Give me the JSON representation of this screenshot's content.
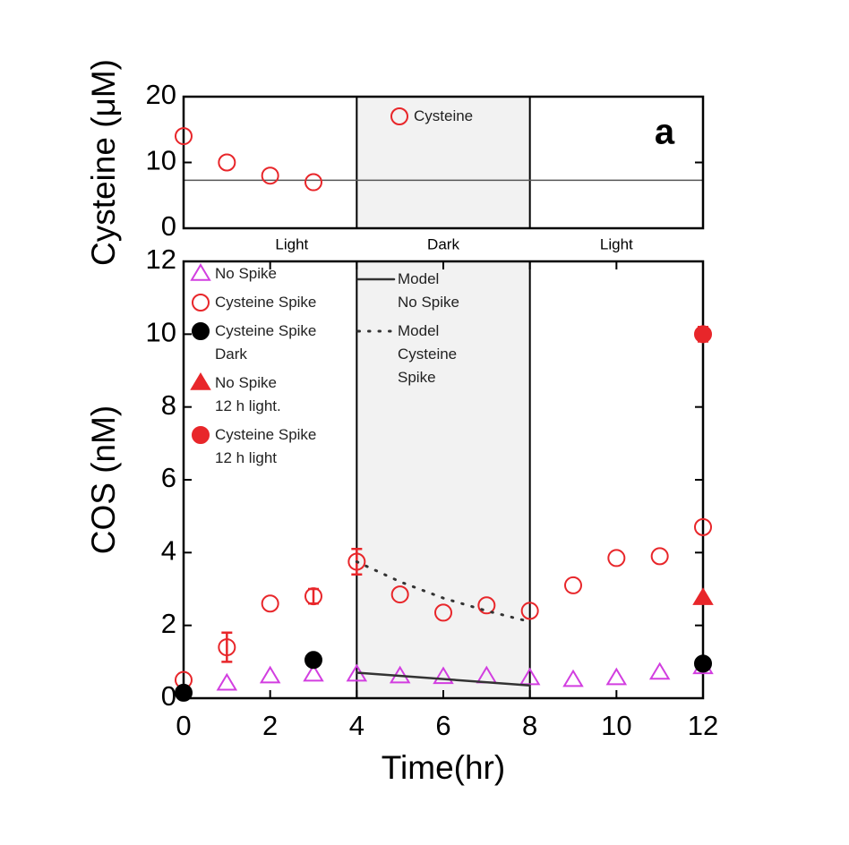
{
  "chart_data": [
    {
      "type": "scatter",
      "ylabel": "Cysteine (μM)",
      "panel_label": "a",
      "xlim": [
        0,
        12
      ],
      "ylim": [
        0,
        20
      ],
      "yticks": [
        0,
        10,
        20
      ],
      "shade": [
        4,
        8
      ],
      "hline": 7.3,
      "period_labels": [
        {
          "x": 2.5,
          "label": "Light"
        },
        {
          "x": 6,
          "label": "Dark"
        },
        {
          "x": 10,
          "label": "Light"
        }
      ],
      "series": [
        {
          "name": "Cysteine",
          "color": "#e8262a",
          "marker": "circle-open",
          "x": [
            0,
            1,
            2,
            3
          ],
          "values": [
            14,
            10,
            8,
            7
          ]
        }
      ]
    },
    {
      "type": "scatter",
      "xlabel": "Time(hr)",
      "ylabel": "COS (nM)",
      "xlim": [
        0,
        12
      ],
      "ylim": [
        0,
        12
      ],
      "xticks": [
        0,
        2,
        4,
        6,
        8,
        10,
        12
      ],
      "yticks": [
        0,
        2,
        4,
        6,
        8,
        10,
        12
      ],
      "shade": [
        4,
        8
      ],
      "series": [
        {
          "name": "No Spike",
          "color": "#d23ee0",
          "marker": "triangle-open",
          "x": [
            1,
            2,
            3,
            4,
            5,
            6,
            7,
            8,
            9,
            10,
            11,
            12
          ],
          "values": [
            0.4,
            0.6,
            0.65,
            0.65,
            0.6,
            0.58,
            0.6,
            0.55,
            0.5,
            0.55,
            0.7,
            0.85
          ]
        },
        {
          "name": "Cysteine Spike",
          "color": "#e8262a",
          "marker": "circle-open",
          "x": [
            0,
            1,
            2,
            3,
            4,
            5,
            6,
            7,
            8,
            9,
            10,
            11,
            12
          ],
          "values": [
            0.5,
            1.4,
            2.6,
            2.8,
            3.75,
            2.85,
            2.35,
            2.55,
            2.4,
            3.1,
            3.85,
            3.9,
            4.7
          ],
          "errors": [
            null,
            0.4,
            null,
            0.2,
            0.35,
            null,
            null,
            null,
            null,
            null,
            null,
            null,
            null
          ]
        },
        {
          "name": "Cysteine Spike\nDark",
          "color": "#000000",
          "marker": "circle",
          "x": [
            0,
            3,
            12
          ],
          "values": [
            0.15,
            1.05,
            0.95
          ]
        },
        {
          "name": "No Spike\n12 h light.",
          "color": "#e8262a",
          "marker": "triangle",
          "x": [
            12
          ],
          "values": [
            2.75
          ]
        },
        {
          "name": "Cysteine Spike\n12 h light",
          "color": "#e8262a",
          "marker": "circle",
          "x": [
            12
          ],
          "values": [
            10.0
          ],
          "errors": [
            0.2
          ]
        },
        {
          "name": "Model\nNo Spike",
          "color": "#333333",
          "style": "solid",
          "x": [
            4,
            8
          ],
          "values": [
            0.7,
            0.35
          ]
        },
        {
          "name": "Model\nCysteine\nSpike",
          "color": "#333333",
          "style": "dotted",
          "x": [
            4,
            5,
            6,
            7,
            8
          ],
          "values": [
            3.75,
            3.2,
            2.75,
            2.4,
            2.1
          ]
        }
      ]
    }
  ]
}
